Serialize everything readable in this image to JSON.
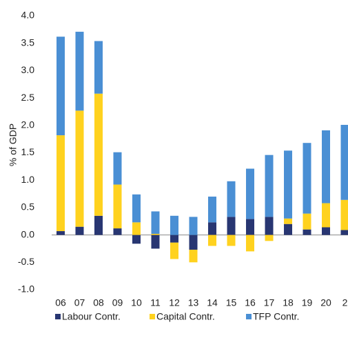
{
  "chart_data": {
    "type": "stacked_bar",
    "y_label": "% of GDP",
    "categories": [
      "06",
      "07",
      "08",
      "09",
      "10",
      "11",
      "12",
      "13",
      "14",
      "15",
      "16",
      "17",
      "18",
      "19",
      "20",
      "2"
    ],
    "series": [
      {
        "name": "Labour Contr.",
        "color": "#283672",
        "values": [
          0.07,
          0.15,
          0.35,
          0.12,
          -0.16,
          -0.25,
          -0.14,
          -0.27,
          0.23,
          0.33,
          0.29,
          0.33,
          0.2,
          0.1,
          0.14,
          0.09
        ]
      },
      {
        "name": "Capital Contr.",
        "color": "#ffd21f",
        "values": [
          1.75,
          2.12,
          2.23,
          0.8,
          0.23,
          0.02,
          -0.3,
          -0.23,
          -0.2,
          -0.2,
          -0.3,
          -0.11,
          0.1,
          0.29,
          0.44,
          0.55
        ]
      },
      {
        "name": "TFP Contr.",
        "color": "#4a8fd4",
        "values": [
          1.8,
          1.44,
          0.96,
          0.59,
          0.51,
          0.41,
          0.35,
          0.33,
          0.47,
          0.65,
          0.92,
          1.13,
          1.24,
          1.29,
          1.33,
          1.37
        ]
      }
    ],
    "ylim": [
      -1.0,
      4.0
    ],
    "yticks": [
      {
        "value": -1.0,
        "label": "-1.0"
      },
      {
        "value": -0.5,
        "label": "-0.5"
      },
      {
        "value": 0.0,
        "label": "0.0"
      },
      {
        "value": 0.5,
        "label": "0.5"
      },
      {
        "value": 1.0,
        "label": "1.0"
      },
      {
        "value": 1.5,
        "label": "1.5"
      },
      {
        "value": 2.0,
        "label": "2.0"
      },
      {
        "value": 2.5,
        "label": "2.5"
      },
      {
        "value": 3.0,
        "label": "3.0"
      },
      {
        "value": 3.5,
        "label": "3.5"
      },
      {
        "value": 4.0,
        "label": "4.0"
      }
    ],
    "legend": "bottom"
  }
}
